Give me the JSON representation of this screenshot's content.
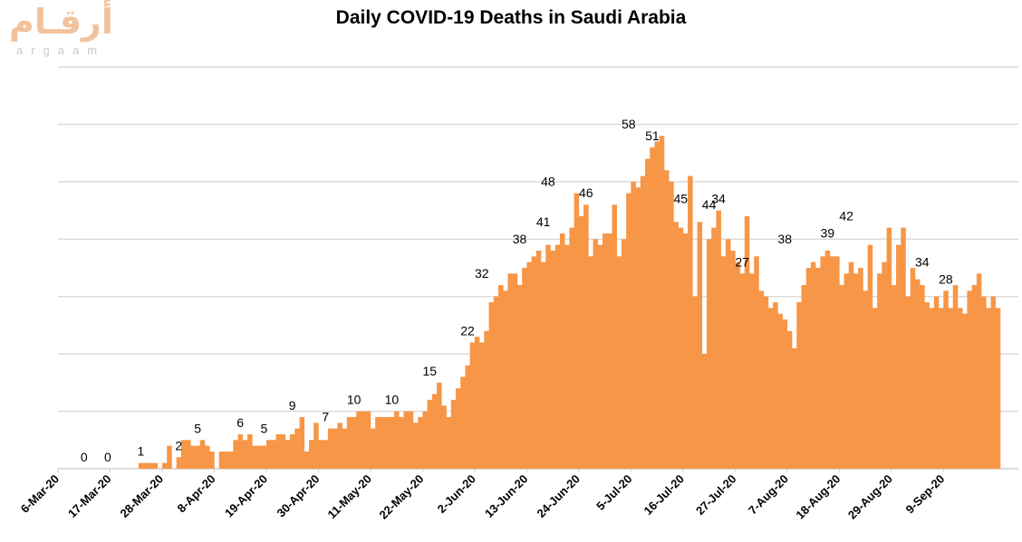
{
  "logo": {
    "arabic": "أرقـام",
    "latin": "argaam",
    "color": "#f2c29c"
  },
  "chart_data": {
    "type": "bar",
    "title": "Daily COVID-19 Deaths in Saudi Arabia",
    "xlabel": "",
    "ylabel": "",
    "ylim": [
      0,
      70
    ],
    "yticks": [
      0,
      10,
      20,
      30,
      40,
      50,
      60,
      70
    ],
    "ytick_labels_visible": false,
    "grid": true,
    "bar_color": "#f79646",
    "start_date": "6-Mar-20",
    "tick_labels": [
      "6-Mar-20",
      "17-Mar-20",
      "28-Mar-20",
      "8-Apr-20",
      "19-Apr-20",
      "30-Apr-20",
      "11-May-20",
      "22-May-20",
      "2-Jun-20",
      "13-Jun-20",
      "24-Jun-20",
      "5-Jul-20",
      "16-Jul-20",
      "27-Jul-20",
      "7-Aug-20",
      "18-Aug-20",
      "29-Aug-20",
      "9-Sep-20"
    ],
    "tick_every_days": 11,
    "values": [
      0,
      0,
      0,
      0,
      0,
      0,
      0,
      0,
      0,
      0,
      0,
      0,
      0,
      0,
      0,
      0,
      0,
      1,
      1,
      1,
      1,
      0,
      1,
      4,
      0,
      2,
      5,
      5,
      4,
      4,
      5,
      4,
      3,
      0,
      3,
      3,
      3,
      5,
      6,
      5,
      6,
      4,
      4,
      4,
      5,
      5,
      6,
      6,
      5,
      6,
      7,
      9,
      3,
      5,
      8,
      5,
      5,
      7,
      7,
      8,
      7,
      9,
      9,
      10,
      10,
      10,
      7,
      9,
      9,
      9,
      9,
      10,
      9,
      10,
      10,
      8,
      9,
      10,
      12,
      13,
      15,
      11,
      9,
      12,
      14,
      16,
      18,
      22,
      23,
      22,
      24,
      29,
      30,
      32,
      31,
      34,
      34,
      32,
      35,
      36,
      37,
      38,
      36,
      39,
      38,
      39,
      41,
      39,
      42,
      48,
      44,
      46,
      37,
      40,
      39,
      41,
      41,
      46,
      37,
      40,
      48,
      50,
      49,
      51,
      54,
      56,
      57,
      58,
      52,
      50,
      43,
      42,
      41,
      51,
      30,
      43,
      20,
      40,
      42,
      45,
      37,
      40,
      38,
      36,
      34,
      44,
      34,
      37,
      31,
      30,
      28,
      29,
      27,
      26,
      24,
      21,
      29,
      32,
      35,
      36,
      35,
      37,
      38,
      37,
      37,
      32,
      34,
      36,
      34,
      35,
      31,
      39,
      28,
      34,
      36,
      42,
      32,
      39,
      42,
      30,
      35,
      33,
      32,
      29,
      28,
      30,
      28,
      31,
      28,
      32,
      28,
      27,
      31,
      32,
      34,
      30,
      28,
      30,
      28
    ],
    "data_labels": [
      {
        "day": 5,
        "label": "0"
      },
      {
        "day": 10,
        "label": "0"
      },
      {
        "day": 17,
        "label": "1"
      },
      {
        "day": 25,
        "label": "2"
      },
      {
        "day": 29,
        "label": "5"
      },
      {
        "day": 38,
        "label": "6"
      },
      {
        "day": 43,
        "label": "5"
      },
      {
        "day": 49,
        "label": "9"
      },
      {
        "day": 56,
        "label": "7"
      },
      {
        "day": 62,
        "label": "10"
      },
      {
        "day": 70,
        "label": "10"
      },
      {
        "day": 78,
        "label": "15"
      },
      {
        "day": 86,
        "label": "22"
      },
      {
        "day": 89,
        "label": "32"
      },
      {
        "day": 97,
        "label": "38"
      },
      {
        "day": 102,
        "label": "41"
      },
      {
        "day": 103,
        "label": "48"
      },
      {
        "day": 111,
        "label": "46"
      },
      {
        "day": 120,
        "label": "58"
      },
      {
        "day": 125,
        "label": "51"
      },
      {
        "day": 131,
        "label": "45"
      },
      {
        "day": 137,
        "label": "44"
      },
      {
        "day": 139,
        "label": "34"
      },
      {
        "day": 144,
        "label": "27"
      },
      {
        "day": 153,
        "label": "38"
      },
      {
        "day": 162,
        "label": "39"
      },
      {
        "day": 166,
        "label": "42"
      },
      {
        "day": 182,
        "label": "34"
      },
      {
        "day": 187,
        "label": "28"
      }
    ]
  }
}
